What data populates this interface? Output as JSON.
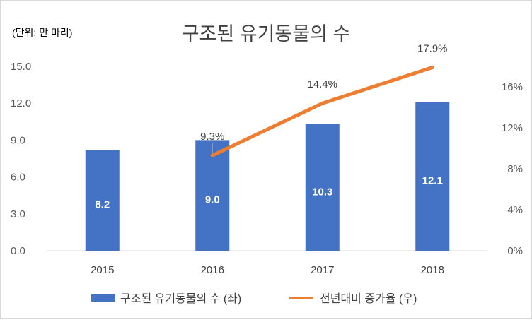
{
  "chart_data": {
    "type": "bar",
    "title": "구조된 유기동물의 수",
    "unit_label": "(단위: 만 마리)",
    "categories": [
      "2015",
      "2016",
      "2017",
      "2018"
    ],
    "series": [
      {
        "name": "구조된 유기동물의 수 (좌)",
        "type": "bar",
        "axis": "left",
        "values": [
          8.2,
          9.0,
          10.3,
          12.1
        ],
        "labels": [
          "8.2",
          "9.0",
          "10.3",
          "12.1"
        ],
        "color": "#4472C4"
      },
      {
        "name": "전년대비 증가율 (우)",
        "type": "line",
        "axis": "right",
        "values": [
          null,
          9.3,
          14.4,
          17.9
        ],
        "labels": [
          "",
          "9.3%",
          "14.4%",
          "17.9%"
        ],
        "color": "#ED7D31"
      }
    ],
    "y_left": {
      "min": 0,
      "max": 15,
      "ticks": [
        "0.0",
        "3.0",
        "6.0",
        "9.0",
        "12.0",
        "15.0"
      ]
    },
    "y_right": {
      "min": 0,
      "max": 18,
      "ticks": [
        "0%",
        "4%",
        "8%",
        "12%",
        "16%"
      ]
    },
    "grid": false,
    "legend_position": "bottom"
  }
}
